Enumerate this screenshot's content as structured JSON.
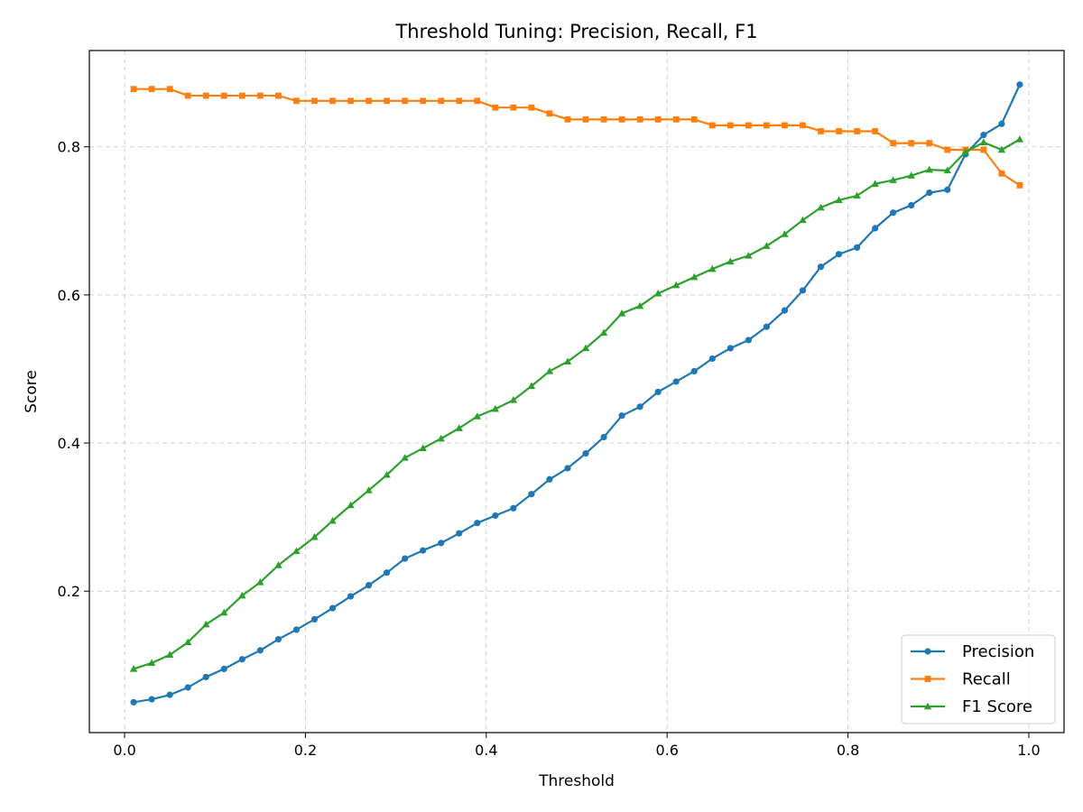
{
  "chart_data": {
    "type": "line",
    "title": "Threshold Tuning: Precision, Recall, F1",
    "xlabel": "Threshold",
    "ylabel": "Score",
    "xlim": [
      -0.039,
      1.039
    ],
    "ylim": [
      0.009,
      0.93
    ],
    "xticks": [
      0.0,
      0.2,
      0.4,
      0.6,
      0.8,
      1.0
    ],
    "xtick_labels": [
      "0.0",
      "0.2",
      "0.4",
      "0.6",
      "0.8",
      "1.0"
    ],
    "yticks": [
      0.2,
      0.4,
      0.6,
      0.8
    ],
    "ytick_labels": [
      "0.2",
      "0.4",
      "0.6",
      "0.8"
    ],
    "grid": true,
    "legend_position": "bottom-right",
    "x": [
      0.01,
      0.03,
      0.05,
      0.07,
      0.09,
      0.11,
      0.13,
      0.15,
      0.17,
      0.19,
      0.21,
      0.23,
      0.25,
      0.27,
      0.29,
      0.31,
      0.33,
      0.35,
      0.37,
      0.39,
      0.41,
      0.43,
      0.45,
      0.47,
      0.49,
      0.51,
      0.53,
      0.55,
      0.57,
      0.59,
      0.61,
      0.63,
      0.65,
      0.67,
      0.69,
      0.71,
      0.73,
      0.75,
      0.77,
      0.79,
      0.81,
      0.83,
      0.85,
      0.87,
      0.89,
      0.91,
      0.93,
      0.95,
      0.97,
      0.99
    ],
    "series": [
      {
        "name": "Precision",
        "color": "#1f77b4",
        "marker": "circle",
        "values": [
          0.05,
          0.054,
          0.06,
          0.07,
          0.084,
          0.095,
          0.108,
          0.12,
          0.135,
          0.148,
          0.162,
          0.177,
          0.193,
          0.208,
          0.225,
          0.244,
          0.255,
          0.265,
          0.278,
          0.292,
          0.302,
          0.312,
          0.331,
          0.351,
          0.366,
          0.386,
          0.408,
          0.437,
          0.449,
          0.469,
          0.483,
          0.497,
          0.514,
          0.528,
          0.539,
          0.557,
          0.579,
          0.606,
          0.638,
          0.655,
          0.664,
          0.69,
          0.711,
          0.721,
          0.738,
          0.742,
          0.79,
          0.816,
          0.831,
          0.884
        ]
      },
      {
        "name": "Recall",
        "color": "#ff7f0e",
        "marker": "square",
        "values": [
          0.878,
          0.878,
          0.878,
          0.869,
          0.869,
          0.869,
          0.869,
          0.869,
          0.869,
          0.862,
          0.862,
          0.862,
          0.862,
          0.862,
          0.862,
          0.862,
          0.862,
          0.862,
          0.862,
          0.862,
          0.853,
          0.853,
          0.853,
          0.845,
          0.837,
          0.837,
          0.837,
          0.837,
          0.837,
          0.837,
          0.837,
          0.837,
          0.829,
          0.829,
          0.829,
          0.829,
          0.829,
          0.829,
          0.821,
          0.821,
          0.821,
          0.821,
          0.805,
          0.805,
          0.805,
          0.796,
          0.796,
          0.796,
          0.764,
          0.748
        ]
      },
      {
        "name": "F1 Score",
        "color": "#2ca02c",
        "marker": "triangle",
        "values": [
          0.095,
          0.103,
          0.114,
          0.131,
          0.155,
          0.171,
          0.194,
          0.212,
          0.235,
          0.254,
          0.273,
          0.295,
          0.316,
          0.336,
          0.357,
          0.38,
          0.393,
          0.406,
          0.42,
          0.436,
          0.446,
          0.458,
          0.477,
          0.497,
          0.51,
          0.528,
          0.549,
          0.575,
          0.585,
          0.602,
          0.613,
          0.624,
          0.635,
          0.645,
          0.653,
          0.666,
          0.682,
          0.701,
          0.718,
          0.728,
          0.734,
          0.75,
          0.755,
          0.761,
          0.769,
          0.768,
          0.793,
          0.806,
          0.796,
          0.81
        ]
      }
    ]
  }
}
